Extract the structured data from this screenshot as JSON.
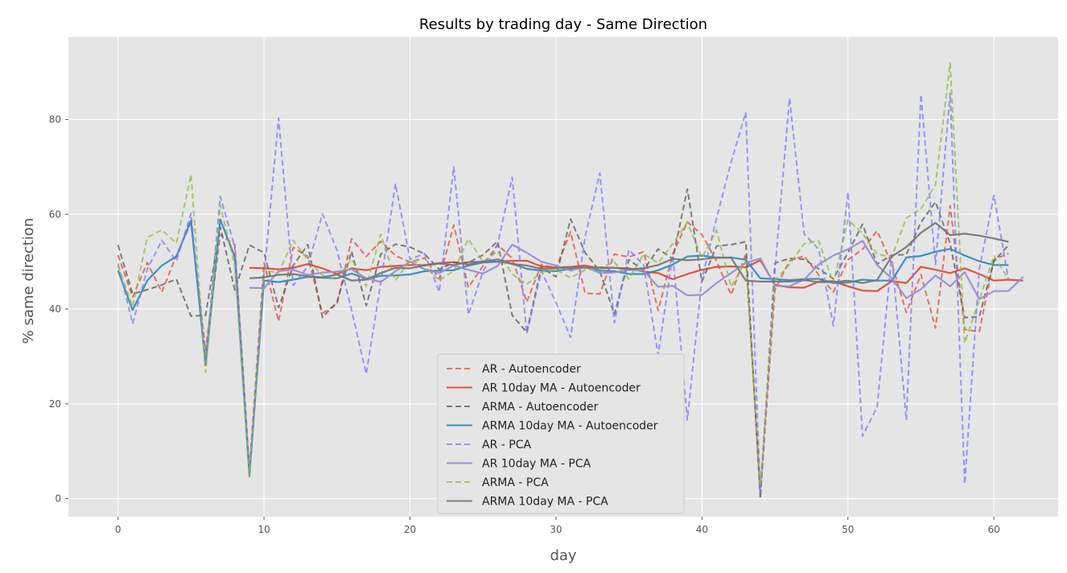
{
  "chart_data": {
    "type": "line",
    "title": "Results by trading day - Same Direction",
    "xlabel": "day",
    "ylabel": "% same direction",
    "xlim": [
      -3.4,
      64.4
    ],
    "ylim": [
      -3.8,
      97.4
    ],
    "xticks": [
      0,
      10,
      20,
      30,
      40,
      50,
      60
    ],
    "yticks": [
      0,
      20,
      40,
      60,
      80
    ],
    "grid": true,
    "legend_position": "lower center",
    "series": [
      {
        "name": "AR - Autoencoder",
        "color": "#e24a33",
        "style": "dashed",
        "x_start": 0,
        "values": [
          51.4,
          42.5,
          49.8,
          43.6,
          51.3,
          58.3,
          31.3,
          55.7,
          53.6,
          6.2,
          49.8,
          37.4,
          53.0,
          51.1,
          39.1,
          41.0,
          54.8,
          51.1,
          54.3,
          51.3,
          49.9,
          50.8,
          46.4,
          57.7,
          44.6,
          49.1,
          53.6,
          50.7,
          41.5,
          49.4,
          48.6,
          56.3,
          43.3,
          43.2,
          51.6,
          51.0,
          52.1,
          39.7,
          51.6,
          58.4,
          55.7,
          50.1,
          43.0,
          51.6,
          0.6,
          44.1,
          50.2,
          51.2,
          47.2,
          43.6,
          50.4,
          52.6,
          56.5,
          49.6,
          39.3,
          47.3,
          36.0,
          61.8,
          35.7,
          35.2,
          50.5,
          51.7
        ]
      },
      {
        "name": "AR 10day MA - Autoencoder",
        "color": "#e24a33",
        "style": "solid",
        "x_start": 9,
        "values": [
          48.7,
          48.6,
          48.4,
          48.7,
          49.5,
          48.6,
          47.4,
          48.6,
          48.2,
          48.9,
          49.1,
          49.3,
          49.3,
          49.7,
          49.9,
          49.4,
          50.1,
          50.0,
          50.2,
          50.2,
          49.0,
          48.8,
          48.9,
          49.2,
          48.6,
          48.7,
          48.6,
          47.9,
          47.6,
          46.3,
          47.4,
          48.3,
          48.9,
          49.0,
          48.8,
          50.3,
          45.1,
          44.6,
          44.5,
          45.8,
          45.9,
          44.8,
          43.9,
          43.8,
          45.9,
          45.5,
          48.9,
          48.3,
          47.6,
          48.6,
          47.4,
          46.0,
          46.2,
          46.0
        ]
      },
      {
        "name": "ARMA - Autoencoder",
        "color": "#555555",
        "style": "dashed",
        "x_start": 0,
        "values": [
          53.5,
          43.2,
          44.1,
          45.1,
          46.3,
          38.5,
          38.7,
          57.4,
          44.0,
          53.5,
          51.9,
          40.3,
          49.2,
          53.6,
          38.2,
          41.5,
          52.2,
          40.7,
          51.6,
          53.7,
          53.1,
          51.6,
          48.4,
          49.8,
          49.8,
          51.4,
          54.3,
          38.7,
          35.1,
          48.8,
          46.8,
          59.0,
          51.9,
          48.0,
          38.9,
          50.4,
          48.2,
          52.7,
          50.6,
          65.3,
          45.8,
          53.3,
          53.6,
          54.2,
          0.2,
          49.7,
          50.7,
          50.5,
          48.5,
          46.4,
          51.9,
          57.9,
          49.5,
          51.4,
          51.5,
          58.3,
          62.6,
          53.8,
          38.2,
          38.4,
          50.1,
          53.5
        ]
      },
      {
        "name": "ARMA 10day MA - Autoencoder",
        "color": "#348abd",
        "style": "solid",
        "x_start": 0,
        "values": [
          48.1,
          39.8,
          46.0,
          49.2,
          51.1,
          58.7,
          28.2,
          58.9,
          51.0,
          4.8,
          46.0,
          45.7,
          46.2,
          46.8,
          46.6,
          46.5,
          47.5,
          46.4,
          47.0,
          47.1,
          47.3,
          48.0,
          48.1,
          48.2,
          49.2,
          49.8,
          50.0,
          49.6,
          48.5,
          48.1,
          48.0,
          48.5,
          48.9,
          48.1,
          48.0,
          47.4,
          47.4,
          48.2,
          49.4,
          51.1,
          51.3,
          50.8,
          50.9,
          50.4,
          46.5,
          46.3,
          46.1,
          46.3,
          46.4,
          45.5,
          45.6,
          46.2,
          46.0,
          46.0,
          50.9,
          51.2,
          52.1,
          52.7,
          51.3,
          50.1,
          49.3,
          49.3
        ]
      },
      {
        "name": "AR - PCA",
        "color": "#7777ff",
        "style": "dashed",
        "x_start": 0,
        "values": [
          49.6,
          36.9,
          48.4,
          54.5,
          50.1,
          60.2,
          28.9,
          63.8,
          53.1,
          5.1,
          47.0,
          80.3,
          45.0,
          49.0,
          60.1,
          52.4,
          39.8,
          26.3,
          45.5,
          66.5,
          50.5,
          51.7,
          43.6,
          70.0,
          38.8,
          47.9,
          53.6,
          67.8,
          34.8,
          48.0,
          41.4,
          34.0,
          55.3,
          68.7,
          37.1,
          52.5,
          49.3,
          30.3,
          51.4,
          16.6,
          46.3,
          59.2,
          71.0,
          81.5,
          1.0,
          48.3,
          84.5,
          55.9,
          52.6,
          36.5,
          64.7,
          13.2,
          19.3,
          51.4,
          16.6,
          85.3,
          49.4,
          85.6,
          3.1,
          48.4,
          64.0,
          46.1
        ]
      },
      {
        "name": "AR 10day MA - PCA",
        "color": "#988ed5",
        "style": "solid",
        "x_start": 9,
        "values": [
          44.5,
          44.4,
          48.0,
          48.3,
          47.2,
          47.7,
          47.9,
          48.4,
          46.5,
          45.7,
          48.0,
          50.0,
          48.4,
          47.6,
          49.2,
          48.3,
          47.5,
          49.1,
          53.6,
          51.9,
          50.0,
          49.2,
          48.1,
          48.9,
          47.6,
          47.7,
          48.3,
          48.1,
          44.7,
          44.9,
          42.9,
          43.0,
          45.5,
          47.6,
          49.7,
          50.7,
          44.9,
          44.8,
          46.2,
          49.4,
          51.3,
          52.6,
          54.4,
          49.3,
          46.5,
          42.3,
          44.2,
          47.1,
          44.8,
          47.8,
          42.1,
          43.8,
          43.8,
          46.8
        ]
      },
      {
        "name": "ARMA - PCA",
        "color": "#8eba42",
        "style": "dashed",
        "x_start": 0,
        "values": [
          49.1,
          40.5,
          55.1,
          56.7,
          53.9,
          68.4,
          26.7,
          61.9,
          49.1,
          4.6,
          48.1,
          47.7,
          54.5,
          50.4,
          47.1,
          46.3,
          50.6,
          44.8,
          55.8,
          46.0,
          50.3,
          49.1,
          46.0,
          48.1,
          54.8,
          50.0,
          52.2,
          47.4,
          45.2,
          47.8,
          48.3,
          46.6,
          48.3,
          48.6,
          49.9,
          46.3,
          51.6,
          49.7,
          53.8,
          58.3,
          50.8,
          56.6,
          44.7,
          50.2,
          2.6,
          46.1,
          49.4,
          53.8,
          54.4,
          45.4,
          58.8,
          56.0,
          51.6,
          51.0,
          59.2,
          61.1,
          66.3,
          91.9,
          32.9,
          42.0,
          51.2,
          46.3
        ]
      },
      {
        "name": "ARMA 10day MA - PCA",
        "color": "#777777",
        "style": "solid",
        "x_start": 9,
        "values": [
          46.5,
          46.7,
          47.2,
          47.4,
          46.9,
          46.7,
          47.3,
          46.0,
          46.2,
          47.6,
          48.7,
          48.6,
          49.2,
          49.6,
          49.3,
          49.9,
          50.0,
          50.5,
          49.5,
          49.2,
          48.5,
          48.6,
          48.8,
          48.7,
          48.8,
          48.7,
          48.4,
          48.6,
          49.3,
          50.6,
          50.3,
          50.5,
          50.9,
          50.8,
          46.0,
          45.8,
          45.8,
          45.8,
          46.1,
          45.7,
          45.7,
          46.0,
          45.5,
          46.1,
          51.1,
          53.1,
          56.1,
          58.2,
          55.6,
          55.9,
          55.5,
          54.9,
          54.2
        ]
      }
    ]
  }
}
